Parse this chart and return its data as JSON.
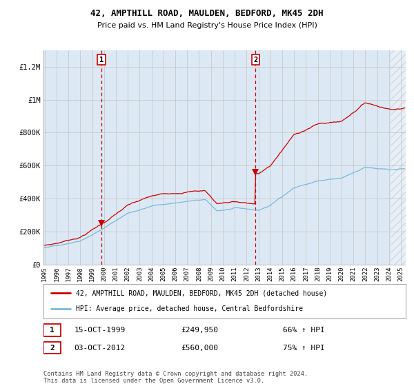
{
  "title1": "42, AMPTHILL ROAD, MAULDEN, BEDFORD, MK45 2DH",
  "title2": "Price paid vs. HM Land Registry's House Price Index (HPI)",
  "legend_line1": "42, AMPTHILL ROAD, MAULDEN, BEDFORD, MK45 2DH (detached house)",
  "legend_line2": "HPI: Average price, detached house, Central Bedfordshire",
  "annotation1_date": "15-OCT-1999",
  "annotation1_price": "£249,950",
  "annotation1_hpi": "66% ↑ HPI",
  "annotation2_date": "03-OCT-2012",
  "annotation2_price": "£560,000",
  "annotation2_hpi": "75% ↑ HPI",
  "sale1_year": 1999.79,
  "sale1_value": 249950,
  "sale2_year": 2012.75,
  "sale2_value": 560000,
  "y_axis_labels": [
    "£0",
    "£200K",
    "£400K",
    "£600K",
    "£800K",
    "£1M",
    "£1.2M"
  ],
  "y_axis_values": [
    0,
    200000,
    400000,
    600000,
    800000,
    1000000,
    1200000
  ],
  "ylim": [
    0,
    1300000
  ],
  "background_color": "#ffffff",
  "plot_bg_color": "#dce9f5",
  "grid_color": "#c8c8c8",
  "hpi_line_color": "#7ab8d9",
  "price_line_color": "#cc0000",
  "vline_color": "#cc0000",
  "footer_text": "Contains HM Land Registry data © Crown copyright and database right 2024.\nThis data is licensed under the Open Government Licence v3.0.",
  "x_start_year": 1995,
  "x_end_year": 2025
}
